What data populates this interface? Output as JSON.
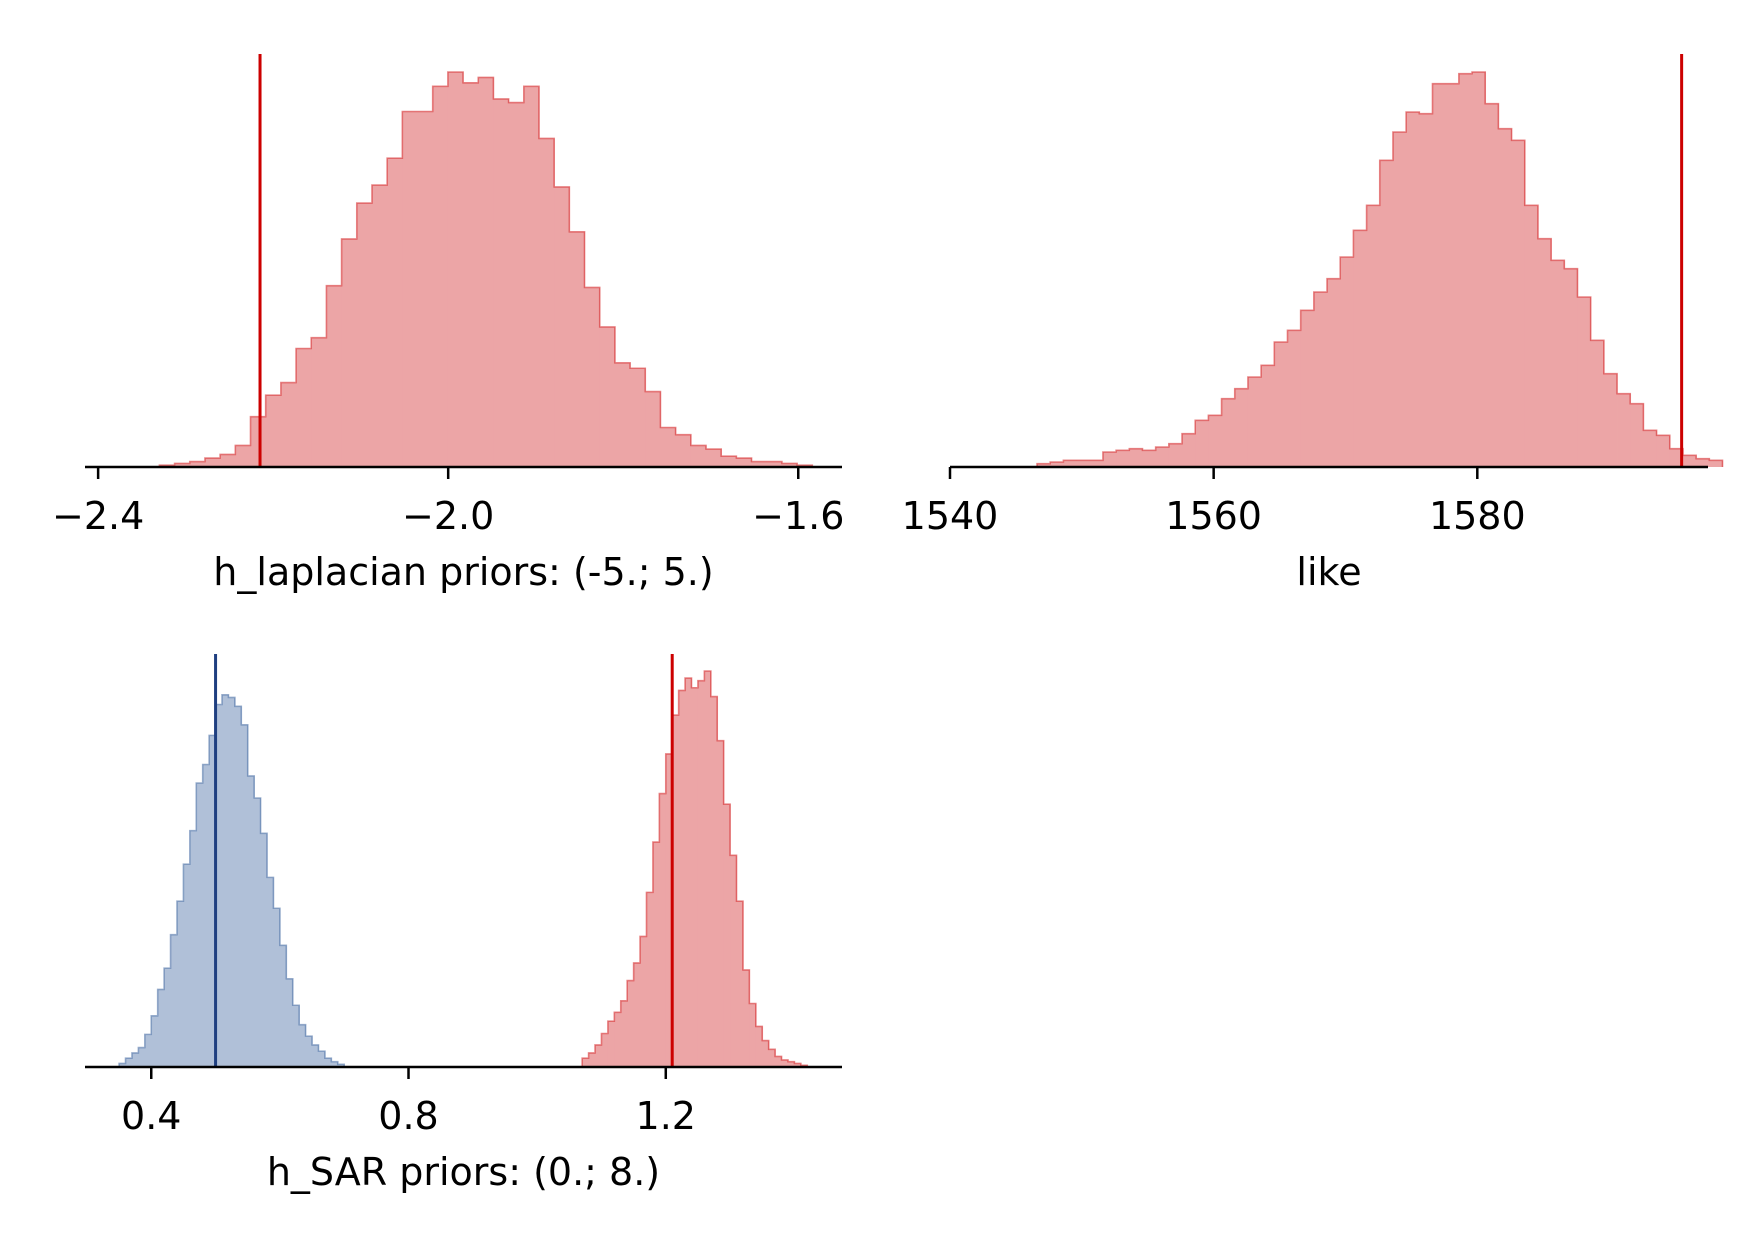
{
  "chart_data": [
    {
      "type": "histogram",
      "xlabel": "h_laplacian  priors: (-5.; 5.)",
      "xticks": [
        -2.4,
        -2.0,
        -1.6
      ],
      "xtick_labels": [
        "−2.4",
        "−2.0",
        "−1.6"
      ],
      "xlim": [
        -2.415,
        -1.55
      ],
      "grid": false,
      "series": [
        {
          "color": "#d62728",
          "fill": "#eca5a6",
          "bins": {
            "start": -2.33,
            "width": 0.01735
          },
          "counts": [
            1,
            2,
            3,
            5,
            7,
            12,
            28,
            40,
            47,
            66,
            72,
            101,
            127,
            147,
            157,
            172,
            198,
            198,
            212,
            220,
            214,
            217,
            205,
            203,
            212,
            183,
            156,
            131,
            100,
            78,
            58,
            55,
            42,
            22,
            18,
            12,
            10,
            6,
            5,
            3,
            3,
            2,
            1
          ]
        }
      ],
      "vlines": [
        {
          "x": -2.215,
          "color": "#cc0000"
        }
      ]
    },
    {
      "type": "histogram",
      "xlabel": "like",
      "xticks": [
        1540,
        1560,
        1580
      ],
      "xtick_labels": [
        "1540",
        "1560",
        "1580"
      ],
      "xlim": [
        1540,
        1597.5
      ],
      "grid": false,
      "series": [
        {
          "color": "#d62728",
          "fill": "#eca5a6",
          "bins": {
            "start": 1546.6,
            "width": 1.0
          },
          "counts": [
            2,
            3,
            4,
            4,
            4,
            9,
            10,
            11,
            10,
            12,
            14,
            20,
            28,
            31,
            41,
            47,
            54,
            61,
            75,
            82,
            94,
            105,
            113,
            126,
            142,
            157,
            184,
            201,
            213,
            212,
            230,
            230,
            236,
            237,
            218,
            203,
            196,
            157,
            137,
            124,
            119,
            102,
            76,
            56,
            44,
            38,
            22,
            19,
            11,
            7,
            5,
            4
          ]
        }
      ],
      "vlines": [
        {
          "x": 1595.5,
          "color": "#cc0000"
        }
      ]
    },
    {
      "type": "histogram",
      "xlabel": "h_SAR  priors: (0.; 8.)",
      "xticks": [
        0.4,
        0.8,
        1.2
      ],
      "xtick_labels": [
        "0.4",
        "0.8",
        "1.2"
      ],
      "xlim": [
        0.297,
        1.474
      ],
      "grid": false,
      "series": [
        {
          "color": "#4a6fa5",
          "fill": "#b0c0d8",
          "bins": {
            "start": 0.35,
            "width": 0.01
          },
          "counts": [
            4,
            10,
            16,
            22,
            37,
            58,
            88,
            112,
            150,
            188,
            230,
            268,
            322,
            343,
            376,
            411,
            422,
            419,
            409,
            388,
            330,
            305,
            265,
            215,
            180,
            138,
            100,
            70,
            48,
            35,
            25,
            18,
            10,
            6,
            3
          ]
        },
        {
          "color": "#d62728",
          "fill": "#eca5a6",
          "bins": {
            "start": 1.07,
            "width": 0.01
          },
          "counts": [
            10,
            16,
            25,
            38,
            52,
            62,
            75,
            98,
            118,
            148,
            198,
            255,
            310,
            355,
            399,
            427,
            441,
            430,
            438,
            449,
            420,
            370,
            298,
            240,
            188,
            110,
            72,
            46,
            30,
            20,
            12,
            8,
            6,
            4,
            2
          ]
        }
      ],
      "vlines": [
        {
          "x": 0.5,
          "color": "#1f3f80"
        },
        {
          "x": 1.21,
          "color": "#cc0000"
        }
      ]
    }
  ]
}
